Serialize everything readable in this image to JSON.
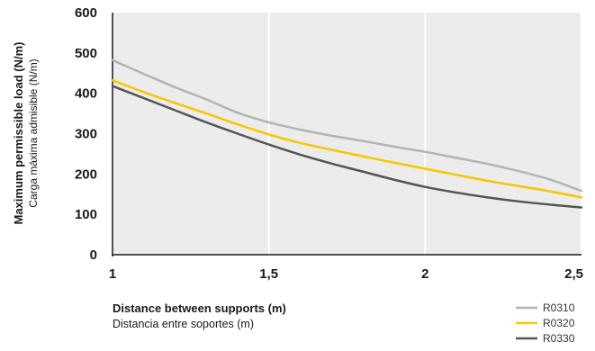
{
  "chart_data": {
    "type": "line",
    "ylabel": "Maximum permissible load (N/m)",
    "ylabel_secondary": "Carga máxima admisible (N/m)",
    "xlabel": "Distance between supports (m)",
    "xlabel_secondary": "Distancia entre soportes (m)",
    "xlim": [
      1,
      2.5
    ],
    "ylim": [
      0,
      600
    ],
    "x_ticks": [
      1,
      1.5,
      2,
      2.5
    ],
    "x_tick_labels": [
      "1",
      "1,5",
      "2",
      "2,5"
    ],
    "y_ticks": [
      0,
      100,
      200,
      300,
      400,
      500,
      600
    ],
    "y_tick_labels": [
      "0",
      "100",
      "200",
      "300",
      "400",
      "500",
      "600"
    ],
    "grid": "vertical",
    "legend_position": "bottom-right",
    "plot_background": "#ececec",
    "series": [
      {
        "name": "R0310",
        "color": "#b3b3b3",
        "x": [
          1,
          1.1,
          1.2,
          1.3,
          1.4,
          1.5,
          1.6,
          1.7,
          1.8,
          1.9,
          2,
          2.1,
          2.2,
          2.3,
          2.4,
          2.5
        ],
        "values": [
          482,
          448,
          415,
          385,
          352,
          328,
          310,
          295,
          282,
          268,
          255,
          240,
          225,
          207,
          186,
          158
        ]
      },
      {
        "name": "R0320",
        "color": "#f5c800",
        "x": [
          1,
          1.1,
          1.2,
          1.3,
          1.4,
          1.5,
          1.6,
          1.7,
          1.8,
          1.9,
          2,
          2.1,
          2.2,
          2.3,
          2.4,
          2.5
        ],
        "values": [
          432,
          403,
          376,
          350,
          323,
          298,
          277,
          260,
          244,
          228,
          213,
          198,
          183,
          170,
          157,
          142
        ]
      },
      {
        "name": "R0330",
        "color": "#555555",
        "x": [
          1,
          1.1,
          1.2,
          1.3,
          1.4,
          1.5,
          1.6,
          1.7,
          1.8,
          1.9,
          2,
          2.1,
          2.2,
          2.3,
          2.4,
          2.5
        ],
        "values": [
          418,
          388,
          358,
          328,
          300,
          273,
          248,
          226,
          206,
          186,
          168,
          154,
          142,
          132,
          124,
          117
        ]
      }
    ]
  }
}
